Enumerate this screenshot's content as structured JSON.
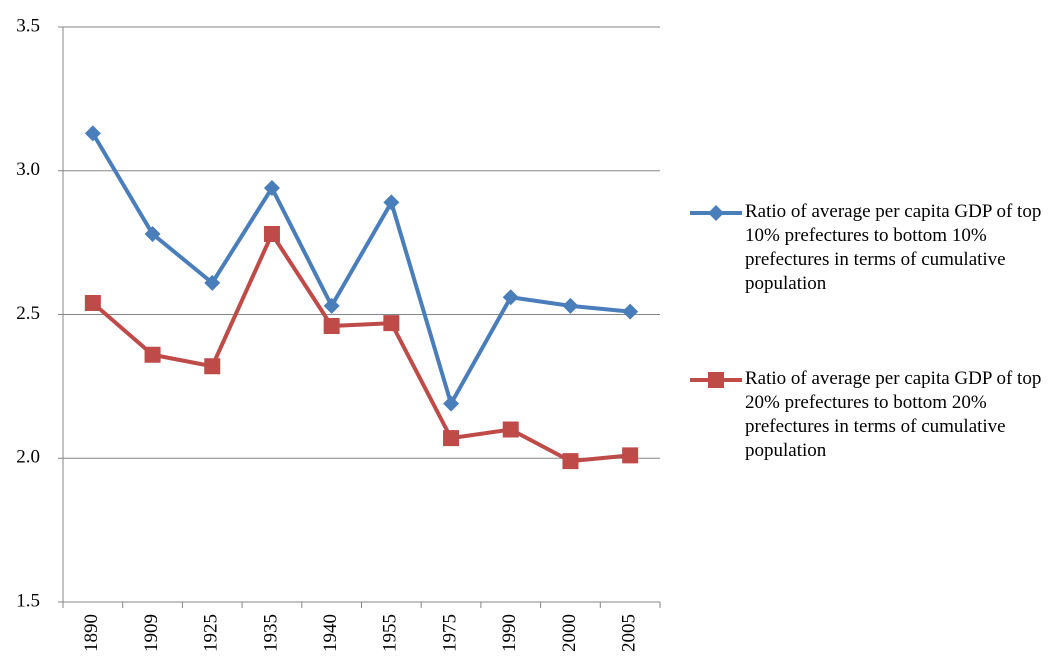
{
  "chart_data": {
    "type": "line",
    "categories": [
      "1890",
      "1909",
      "1925",
      "1935",
      "1940",
      "1955",
      "1975",
      "1990",
      "2000",
      "2005"
    ],
    "series": [
      {
        "name": "Ratio of average per capita GDP of top 10% prefectures to bottom 10% prefectures in terms of cumulative population",
        "color": "#4a7ebb",
        "marker": "diamond",
        "values": [
          3.13,
          2.78,
          2.61,
          2.94,
          2.53,
          2.89,
          2.19,
          2.56,
          2.53,
          2.51
        ]
      },
      {
        "name": "Ratio of average per capita GDP of top 20% prefectures to bottom 20% prefectures in terms of cumulative population",
        "color": "#be4b48",
        "marker": "square",
        "values": [
          2.54,
          2.36,
          2.32,
          2.78,
          2.46,
          2.47,
          2.07,
          2.1,
          1.99,
          2.01
        ]
      }
    ],
    "ylim": [
      1.5,
      3.5
    ],
    "yticks": [
      1.5,
      {
        "value": 2,
        "label": "2.0"
      },
      2.5,
      {
        "value": 3,
        "label": "3.0"
      },
      3.5
    ],
    "grid": true,
    "legend": "right"
  }
}
